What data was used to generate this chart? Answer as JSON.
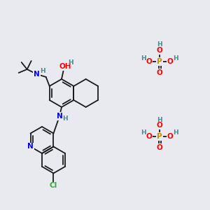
{
  "bg_color": "#e8eaf0",
  "bond_color": "#1a1a1a",
  "nitrogen_color": "#0000ff",
  "oxygen_color": "#ff0000",
  "phosphorus_color": "#cc8800",
  "chlorine_color": "#33aa33",
  "teal_color": "#4a8a8a",
  "figsize": [
    3.0,
    3.0
  ],
  "dpi": 100,
  "phosphate1": [
    228,
    88
  ],
  "phosphate2": [
    228,
    195
  ]
}
